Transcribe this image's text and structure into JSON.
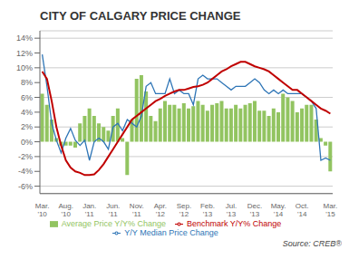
{
  "chart_data": {
    "type": "bar",
    "title": "CITY OF CALGARY PRICE CHANGE",
    "annotations": [
      "Source: CREB®"
    ],
    "categories": [
      "Mar.\n'10",
      null,
      null,
      null,
      null,
      "Aug.\n'10",
      null,
      null,
      null,
      null,
      "Jan.\n'11",
      null,
      null,
      null,
      null,
      "Jun.\n'11",
      null,
      null,
      null,
      null,
      "Nov.\n'11",
      null,
      null,
      null,
      null,
      "Apr.\n'12",
      null,
      null,
      null,
      null,
      "Sep.\n'12",
      null,
      null,
      null,
      null,
      "Feb.\n'13",
      null,
      null,
      null,
      null,
      "Jul.\n'13",
      null,
      null,
      null,
      null,
      "Dec.\n'13",
      null,
      null,
      null,
      null,
      "May.\n'14",
      null,
      null,
      null,
      null,
      "Oct.\n'14",
      null,
      null,
      null,
      null,
      null,
      "Mar.\n'15"
    ],
    "series": [
      {
        "name": "Average Price Y/Y% Change",
        "type": "bar",
        "color": "#92c461",
        "values": [
          6.5,
          5.0,
          3.0,
          0.5,
          -0.5,
          -0.5,
          -0.5,
          -0.8,
          2.5,
          3.5,
          4.5,
          3.5,
          2.5,
          2.0,
          1.5,
          3.5,
          4.5,
          0.5,
          -4.5,
          3.0,
          8.5,
          9.0,
          6.8,
          3.5,
          2.8,
          4.5,
          5.5,
          5.0,
          5.0,
          4.5,
          5.2,
          4.5,
          4.8,
          5.5,
          5.0,
          4.2,
          5.0,
          5.2,
          5.5,
          4.5,
          4.5,
          5.0,
          4.5,
          5.0,
          5.2,
          5.5,
          4.2,
          4.2,
          3.5,
          4.5,
          4.0,
          6.5,
          6.0,
          5.5,
          4.0,
          4.5,
          5.0,
          5.0,
          3.0,
          0.5,
          -0.5,
          -4.0
        ]
      },
      {
        "name": "Y/Y Median Price Change",
        "type": "line",
        "color": "#2e75b6",
        "values": [
          11.8,
          7.5,
          2.5,
          0.2,
          -1.5,
          0.5,
          1.8,
          0.2,
          -0.5,
          0.2,
          -2.5,
          0.0,
          0.5,
          0.0,
          -1.0,
          2.0,
          2.5,
          1.5,
          3.0,
          2.5,
          2.0,
          3.5,
          7.5,
          8.0,
          6.5,
          6.5,
          6.5,
          8.5,
          6.5,
          7.0,
          6.5,
          6.5,
          5.0,
          8.5,
          9.0,
          8.5,
          8.5,
          8.5,
          8.0,
          7.5,
          7.0,
          7.5,
          7.5,
          7.5,
          8.0,
          8.5,
          8.0,
          7.0,
          6.5,
          7.0,
          6.5,
          7.0,
          6.5,
          6.5,
          6.5,
          6.5,
          6.0,
          5.5,
          4.5,
          -2.5,
          -2.2,
          -2.5
        ]
      },
      {
        "name": "Benchmark Y/Y% Change",
        "type": "line",
        "color": "#c00000",
        "values": [
          9.5,
          8.5,
          5.5,
          2.0,
          -0.5,
          -2.5,
          -3.5,
          -4.0,
          -4.2,
          -4.5,
          -4.5,
          -4.4,
          -3.8,
          -3.0,
          -2.0,
          -1.0,
          0.0,
          1.0,
          2.0,
          3.0,
          3.5,
          4.0,
          4.5,
          5.0,
          5.5,
          5.8,
          6.2,
          6.5,
          6.8,
          7.0,
          7.0,
          7.2,
          7.4,
          7.5,
          7.7,
          8.0,
          8.5,
          9.0,
          9.5,
          9.8,
          10.2,
          10.5,
          10.8,
          10.8,
          10.5,
          10.2,
          10.0,
          9.8,
          9.5,
          9.0,
          8.5,
          8.0,
          7.5,
          7.0,
          7.0,
          6.5,
          6.0,
          5.5,
          5.0,
          4.5,
          4.2,
          3.8
        ]
      }
    ],
    "ylim": [
      -7,
      15
    ],
    "yticks": [
      {
        "value": -6,
        "label": "-6%"
      },
      {
        "value": -4,
        "label": "-4%"
      },
      {
        "value": -2,
        "label": "-2%"
      },
      {
        "value": 0,
        "label": "0%"
      },
      {
        "value": 2,
        "label": "2%"
      },
      {
        "value": 4,
        "label": "4%"
      },
      {
        "value": 6,
        "label": "6%"
      },
      {
        "value": 8,
        "label": "8%"
      },
      {
        "value": 10,
        "label": "10%"
      },
      {
        "value": 12,
        "label": "12%"
      },
      {
        "value": 14,
        "label": "14%"
      }
    ],
    "grid": true,
    "legend": "bottom"
  }
}
